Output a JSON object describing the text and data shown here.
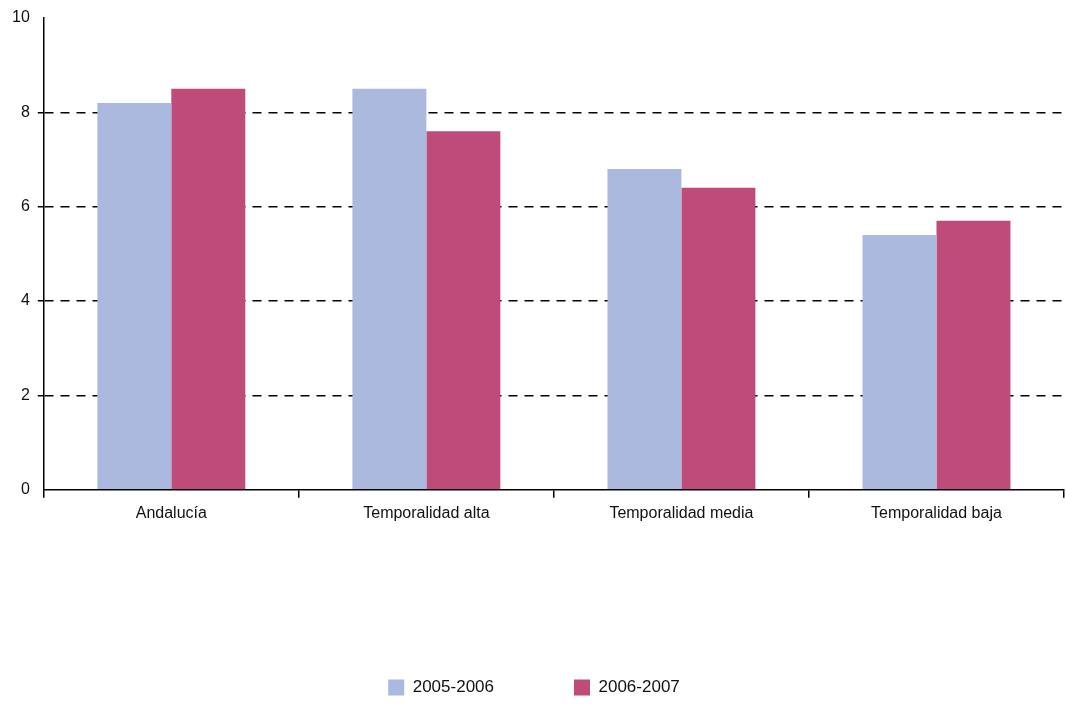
{
  "chart_data": {
    "type": "bar",
    "categories": [
      "Andalucía",
      "Temporalidad alta",
      "Temporalidad media",
      "Temporalidad baja"
    ],
    "series": [
      {
        "name": "2005-2006",
        "color": "#aab9dd",
        "values": [
          8.2,
          8.5,
          6.8,
          5.4
        ]
      },
      {
        "name": "2006-2007",
        "color": "#be4b7a",
        "values": [
          8.5,
          7.6,
          6.4,
          5.7
        ]
      }
    ],
    "ylim": [
      0,
      10
    ],
    "yticks": [
      0,
      2,
      4,
      6,
      8,
      10
    ],
    "grid": "y",
    "line_style": "dashed",
    "legend": "bottom"
  }
}
